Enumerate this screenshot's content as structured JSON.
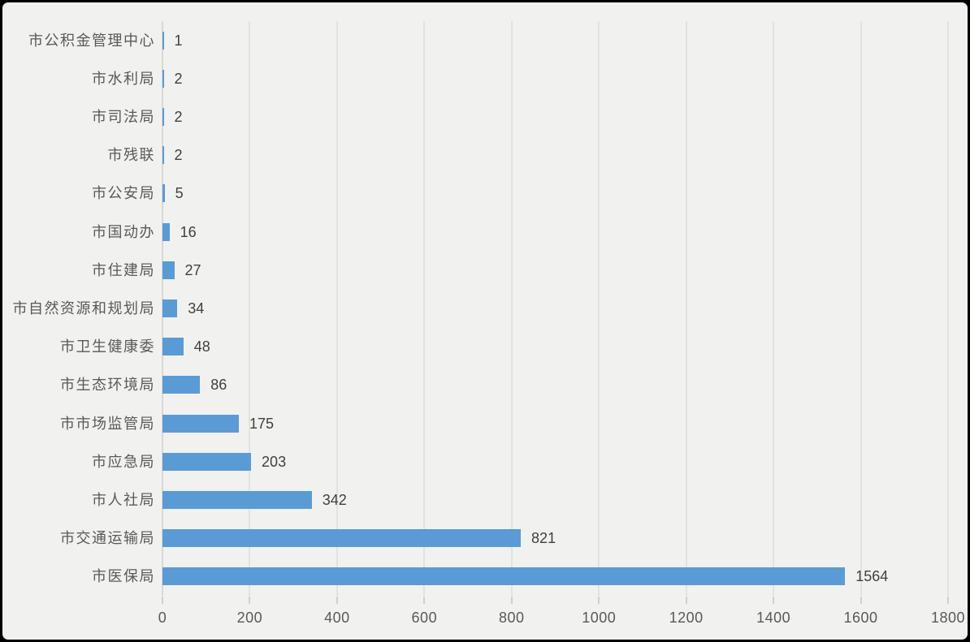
{
  "frame": {
    "background_color": "#f1f1f0",
    "border_color": "#000000"
  },
  "chart_data": {
    "type": "bar",
    "orientation": "horizontal",
    "title": "",
    "xlabel": "",
    "ylabel": "",
    "legend": "none",
    "grid": "vertical",
    "categories_top_to_bottom": [
      "市公积金管理中心",
      "市水利局",
      "市司法局",
      "市残联",
      "市公安局",
      "市国动办",
      "市住建局",
      "市自然资源和规划局",
      "市卫生健康委",
      "市生态环境局",
      "市市场监管局",
      "市应急局",
      "市人社局",
      "市交通运输局",
      "市医保局"
    ],
    "values": [
      1,
      2,
      2,
      2,
      5,
      16,
      27,
      34,
      48,
      86,
      175,
      203,
      342,
      821,
      1564
    ],
    "data_labels_shown": true,
    "xlim": [
      0,
      1800
    ],
    "x_ticks": [
      0,
      200,
      400,
      600,
      800,
      1000,
      1200,
      1400,
      1600,
      1800
    ],
    "colors": {
      "bar": "#5b9bd5",
      "gridline": "#e2e2e1",
      "axis_line": "#d9d9d8",
      "tick_mark": "#cfcfce",
      "category_label": "#595959",
      "value_label": "#404040",
      "tick_label": "#595959"
    }
  }
}
